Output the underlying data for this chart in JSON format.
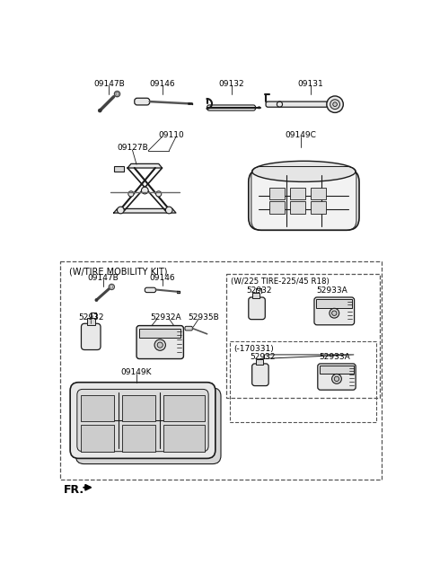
{
  "bg_color": "#ffffff",
  "line_color": "#1a1a1a",
  "gray_fill": "#e8e8e8",
  "gray_dark": "#c8c8c8",
  "gray_mid": "#d8d8d8",
  "labels": {
    "top": [
      "09147B",
      "09146",
      "09132",
      "09131"
    ],
    "mid_left": [
      "09110",
      "09127B"
    ],
    "mid_right": "09149C",
    "box_label": "(W/TIRE MOBILITY KIT)",
    "box_left": [
      "09147B",
      "09146",
      "52932",
      "52932A",
      "52935B",
      "09149K"
    ],
    "right_box1_label": "(W/225 TIRE-225/45 R18)",
    "right_box1": [
      "52932",
      "52933A"
    ],
    "right_box2_label": "(-170331)",
    "right_box2": [
      "52932",
      "52933A"
    ],
    "fr": "FR."
  }
}
